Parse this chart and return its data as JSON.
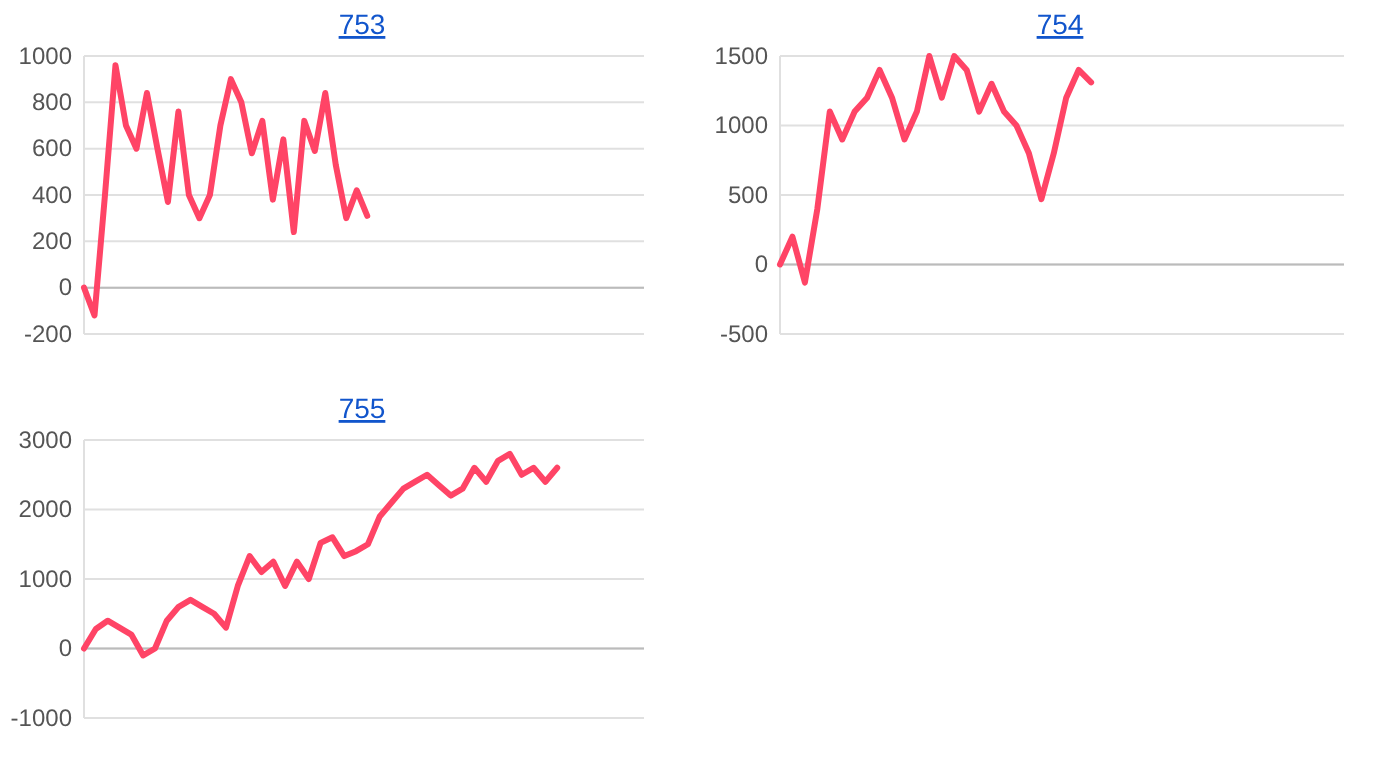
{
  "chart_data": [
    {
      "type": "line",
      "title": "753",
      "categories": [
        null,
        null,
        null,
        null,
        null,
        null,
        null,
        null,
        null,
        null,
        null,
        null,
        null,
        null,
        null,
        null,
        null,
        null,
        null,
        null,
        null,
        null,
        null,
        null,
        null,
        null,
        null,
        null,
        null,
        null,
        null,
        null,
        null,
        null,
        null,
        null,
        null,
        null,
        null,
        null,
        null,
        null,
        null,
        null,
        null,
        null,
        null,
        null,
        null,
        null,
        null,
        null,
        null,
        null
      ],
      "series": [
        {
          "color": "#ff4466",
          "values": [
            0,
            -120,
            400,
            960,
            700,
            600,
            840,
            600,
            370,
            760,
            400,
            300,
            400,
            700,
            900,
            800,
            580,
            720,
            380,
            640,
            240,
            720,
            590,
            840,
            530,
            300,
            420,
            310,
            null,
            null,
            null,
            null,
            null,
            null,
            null,
            null,
            null,
            null,
            null,
            null,
            null,
            null,
            null,
            null,
            null,
            null,
            null,
            null,
            null,
            null,
            null,
            null,
            null,
            null
          ]
        }
      ],
      "ylim": [
        -200,
        1000
      ],
      "yticks": [
        -200,
        0,
        200,
        400,
        600,
        800,
        1000
      ],
      "grid": "y",
      "tick_labels": "y"
    },
    {
      "type": "line",
      "title": "754",
      "categories": [
        null,
        null,
        null,
        null,
        null,
        null,
        null,
        null,
        null,
        null,
        null,
        null,
        null,
        null,
        null,
        null,
        null,
        null,
        null,
        null,
        null,
        null,
        null,
        null,
        null,
        null,
        null,
        null,
        null,
        null,
        null,
        null,
        null,
        null,
        null,
        null,
        null,
        null,
        null,
        null,
        null,
        null,
        null,
        null,
        null,
        null
      ],
      "series": [
        {
          "color": "#ff4466",
          "values": [
            0,
            200,
            -130,
            400,
            1100,
            900,
            1100,
            1200,
            1400,
            1200,
            900,
            1100,
            1500,
            1200,
            1500,
            1400,
            1100,
            1300,
            1100,
            1000,
            800,
            470,
            800,
            1200,
            1400,
            1310,
            null,
            null,
            null,
            null,
            null,
            null,
            null,
            null,
            null,
            null,
            null,
            null,
            null,
            null,
            null,
            null,
            null,
            null,
            null,
            null
          ]
        }
      ],
      "ylim": [
        -500,
        1500
      ],
      "yticks": [
        -500,
        0,
        500,
        1000,
        1500
      ],
      "grid": "y",
      "tick_labels": "y"
    },
    {
      "type": "line",
      "title": "755",
      "categories": [
        null,
        null,
        null,
        null,
        null,
        null,
        null,
        null,
        null,
        null,
        null,
        null,
        null,
        null,
        null,
        null,
        null,
        null,
        null,
        null,
        null,
        null,
        null,
        null,
        null,
        null,
        null,
        null,
        null,
        null,
        null,
        null,
        null,
        null,
        null,
        null,
        null,
        null,
        null,
        null,
        null,
        null,
        null,
        null,
        null,
        null,
        null,
        null
      ],
      "series": [
        {
          "color": "#ff4466",
          "values": [
            0,
            280,
            400,
            300,
            200,
            -100,
            0,
            400,
            600,
            700,
            600,
            500,
            300,
            900,
            1330,
            1100,
            1250,
            900,
            1250,
            1000,
            1520,
            1600,
            1330,
            1400,
            1500,
            1900,
            2100,
            2300,
            2400,
            2500,
            2350,
            2200,
            2300,
            2600,
            2400,
            2700,
            2800,
            2500,
            2600,
            2400,
            2600,
            null,
            null,
            null,
            null,
            null,
            null,
            null
          ]
        }
      ],
      "ylim": [
        -1000,
        3000
      ],
      "yticks": [
        -1000,
        0,
        1000,
        2000,
        3000
      ],
      "grid": "y",
      "tick_labels": "y"
    }
  ]
}
